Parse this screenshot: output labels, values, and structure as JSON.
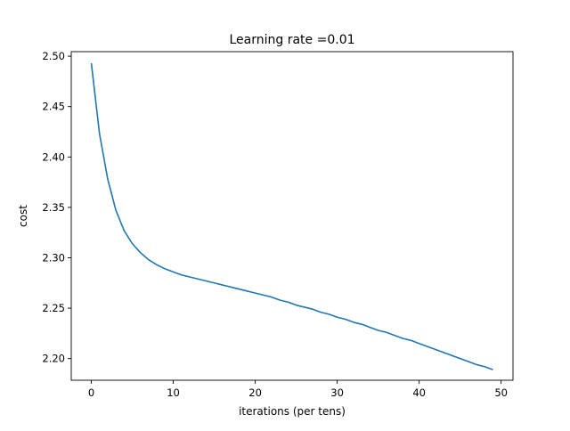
{
  "chart_data": {
    "type": "line",
    "title": "Learning rate =0.01",
    "xlabel": "iterations (per tens)",
    "ylabel": "cost",
    "xlim": [
      -2.45,
      51.45
    ],
    "ylim": [
      2.1785,
      2.5045
    ],
    "xticks": [
      0,
      10,
      20,
      30,
      40,
      50
    ],
    "yticks": [
      2.2,
      2.25,
      2.3,
      2.35,
      2.4,
      2.45,
      2.5
    ],
    "ytick_labels": [
      "2.20",
      "2.25",
      "2.30",
      "2.35",
      "2.40",
      "2.45",
      "2.50"
    ],
    "grid": false,
    "series": [
      {
        "color": "#1f77b4",
        "x": [
          0,
          1,
          2,
          3,
          4,
          5,
          6,
          7,
          8,
          9,
          10,
          11,
          12,
          13,
          14,
          15,
          16,
          17,
          18,
          19,
          20,
          21,
          22,
          23,
          24,
          25,
          26,
          27,
          28,
          29,
          30,
          31,
          32,
          33,
          34,
          35,
          36,
          37,
          38,
          39,
          40,
          41,
          42,
          43,
          44,
          45,
          46,
          47,
          48,
          49
        ],
        "y": [
          2.493,
          2.423,
          2.378,
          2.347,
          2.327,
          2.314,
          2.305,
          2.298,
          2.293,
          2.289,
          2.286,
          2.283,
          2.281,
          2.279,
          2.277,
          2.275,
          2.273,
          2.271,
          2.269,
          2.267,
          2.265,
          2.263,
          2.261,
          2.258,
          2.256,
          2.253,
          2.251,
          2.249,
          2.246,
          2.244,
          2.241,
          2.239,
          2.236,
          2.234,
          2.231,
          2.228,
          2.226,
          2.223,
          2.22,
          2.218,
          2.215,
          2.212,
          2.209,
          2.206,
          2.203,
          2.2,
          2.197,
          2.194,
          2.192,
          2.189
        ]
      }
    ]
  }
}
